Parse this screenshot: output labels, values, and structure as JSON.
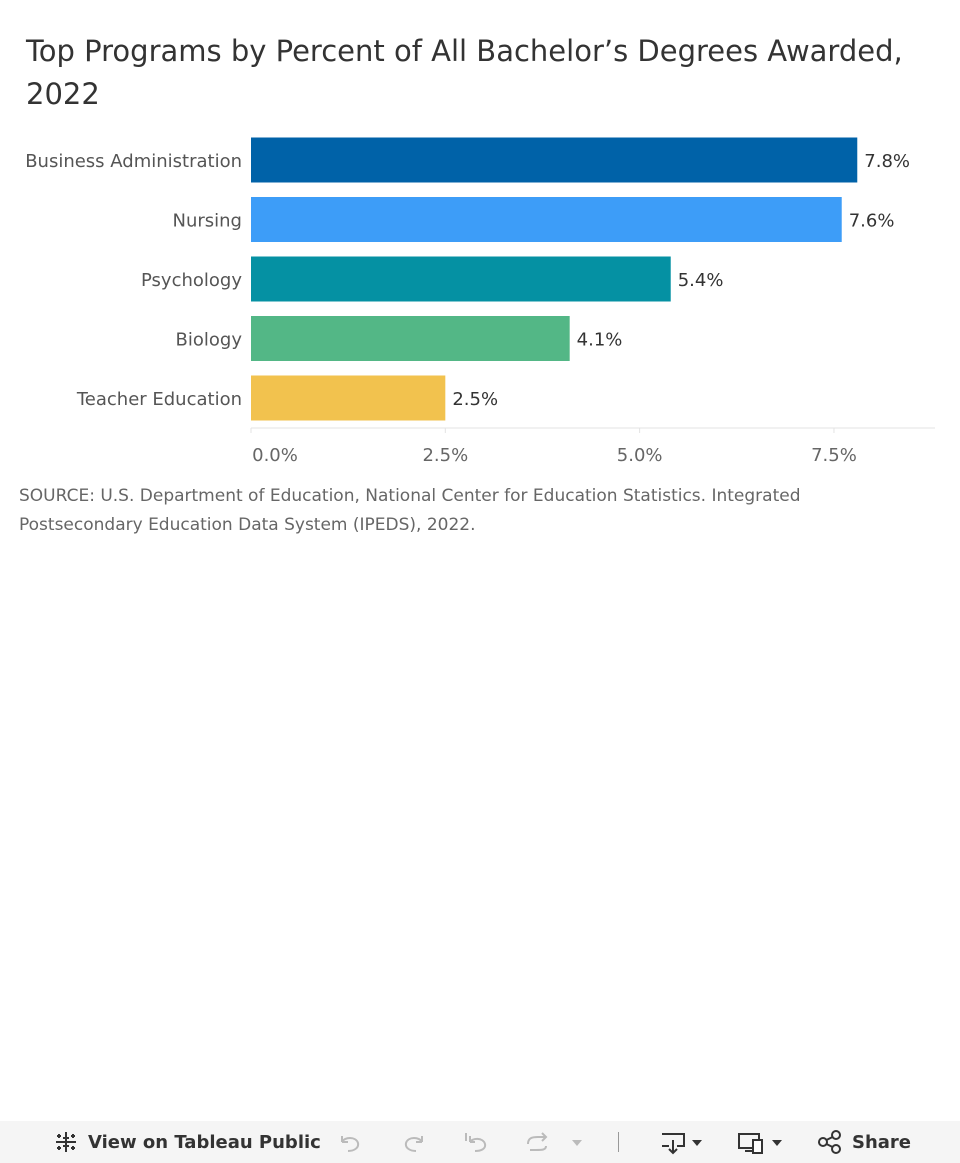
{
  "chart_data": {
    "type": "bar",
    "orientation": "horizontal",
    "title": "Top Programs by Percent of All Bachelor’s Degrees Awarded, 2022",
    "categories": [
      "Business Administration",
      "Nursing",
      "Psychology",
      "Biology",
      "Teacher Education"
    ],
    "values": [
      7.8,
      7.6,
      5.4,
      4.1,
      2.5
    ],
    "value_labels": [
      "7.8%",
      "7.6%",
      "5.4%",
      "4.1%",
      "2.5%"
    ],
    "colors": [
      "#0062a8",
      "#3d9df8",
      "#0591a3",
      "#53b786",
      "#f2c24e"
    ],
    "xlim": [
      0,
      8.8
    ],
    "xticks": [
      0,
      2.5,
      5.0,
      7.5
    ],
    "xtick_labels": [
      "0.0%",
      "2.5%",
      "5.0%",
      "7.5%"
    ],
    "xlabel": "",
    "ylabel": "",
    "grid": false,
    "legend": "none"
  },
  "source": "SOURCE: U.S. Department of Education, National Center for Education Statistics. Integrated Postsecondary Education Data System (IPEDS), 2022.",
  "toolbar": {
    "view_label": "View on Tableau Public",
    "share_label": "Share"
  }
}
